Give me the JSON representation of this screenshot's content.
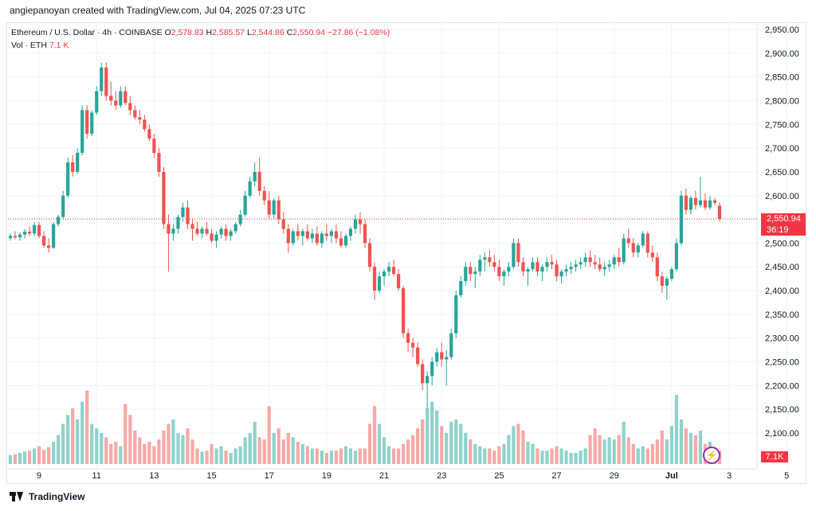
{
  "header": {
    "attribution": "angiepanoyan created with TradingView.com, Jul 04, 2025 07:23 UTC"
  },
  "legend": {
    "symbol": "Ethereum / U.S. Dollar · 4h · COINBASE",
    "open_label": "O",
    "open": "2,578.83",
    "high_label": "H",
    "high": "2,585.57",
    "low_label": "L",
    "low": "2,544.86",
    "close_label": "C",
    "close": "2,550.94",
    "change": "−27.86 (−1.08%)",
    "vol_label": "Vol · ETH",
    "vol_value": "7.1 K"
  },
  "last_price": {
    "price": "2,550.94",
    "countdown": "36:19",
    "vol_tag": "7.1K"
  },
  "footer": {
    "brand": "TradingView"
  },
  "colors": {
    "up": "#26a69a",
    "down": "#ef5350",
    "vol_up": "#8fd3cc",
    "vol_down": "#f7a9a7",
    "last": "#f23645",
    "grid": "#f0f3fa"
  },
  "chart_data": {
    "type": "candlestick",
    "ylim": [
      2130,
      2960
    ],
    "y_ticks": [
      "2,950.00",
      "2,900.00",
      "2,850.00",
      "2,800.00",
      "2,750.00",
      "2,700.00",
      "2,650.00",
      "2,600.00",
      "2,550.00",
      "2,500.00",
      "2,450.00",
      "2,400.00",
      "2,350.00",
      "2,300.00",
      "2,250.00",
      "2,200.00",
      "2,150.00",
      "2,100.00"
    ],
    "y_tick_values": [
      2950,
      2900,
      2850,
      2800,
      2750,
      2700,
      2650,
      2600,
      2550,
      2500,
      2450,
      2400,
      2350,
      2300,
      2250,
      2200,
      2150,
      2100
    ],
    "x_ticks": [
      "9",
      "11",
      "13",
      "15",
      "17",
      "19",
      "21",
      "23",
      "25",
      "27",
      "29",
      "Jul",
      "3",
      "5"
    ],
    "x_tick_index": [
      6,
      18,
      30,
      42,
      54,
      66,
      78,
      90,
      102,
      114,
      126,
      138,
      150,
      162
    ],
    "candles": [
      [
        2510,
        2520,
        2505,
        2515,
        2.0
      ],
      [
        2515,
        2525,
        2508,
        2512,
        2.2
      ],
      [
        2512,
        2522,
        2505,
        2518,
        2.5
      ],
      [
        2518,
        2530,
        2510,
        2524,
        2.8
      ],
      [
        2524,
        2535,
        2515,
        2520,
        3.0
      ],
      [
        2520,
        2545,
        2515,
        2538,
        3.5
      ],
      [
        2538,
        2545,
        2510,
        2515,
        4.0
      ],
      [
        2515,
        2525,
        2490,
        2495,
        3.2
      ],
      [
        2495,
        2510,
        2480,
        2490,
        3.8
      ],
      [
        2490,
        2545,
        2488,
        2540,
        5.0
      ],
      [
        2540,
        2560,
        2535,
        2555,
        6.5
      ],
      [
        2555,
        2610,
        2550,
        2600,
        9.0
      ],
      [
        2600,
        2680,
        2595,
        2670,
        11.0
      ],
      [
        2670,
        2685,
        2640,
        2650,
        12.5
      ],
      [
        2650,
        2700,
        2645,
        2690,
        10.0
      ],
      [
        2690,
        2790,
        2685,
        2780,
        14.0
      ],
      [
        2780,
        2790,
        2720,
        2730,
        16.5
      ],
      [
        2730,
        2780,
        2725,
        2775,
        9.0
      ],
      [
        2775,
        2830,
        2770,
        2820,
        8.0
      ],
      [
        2820,
        2880,
        2810,
        2870,
        7.0
      ],
      [
        2870,
        2880,
        2800,
        2810,
        6.0
      ],
      [
        2810,
        2840,
        2790,
        2800,
        4.5
      ],
      [
        2800,
        2820,
        2780,
        2790,
        5.0
      ],
      [
        2790,
        2830,
        2785,
        2820,
        4.0
      ],
      [
        2820,
        2830,
        2790,
        2795,
        13.5
      ],
      [
        2795,
        2810,
        2770,
        2780,
        11.0
      ],
      [
        2780,
        2790,
        2760,
        2765,
        7.5
      ],
      [
        2765,
        2780,
        2750,
        2760,
        6.0
      ],
      [
        2760,
        2770,
        2735,
        2740,
        4.5
      ],
      [
        2740,
        2750,
        2715,
        2720,
        5.0
      ],
      [
        2720,
        2730,
        2680,
        2690,
        4.0
      ],
      [
        2690,
        2700,
        2640,
        2650,
        5.5
      ],
      [
        2650,
        2660,
        2530,
        2540,
        7.5
      ],
      [
        2540,
        2560,
        2440,
        2520,
        9.0
      ],
      [
        2520,
        2540,
        2505,
        2530,
        10.0
      ],
      [
        2530,
        2560,
        2520,
        2555,
        7.0
      ],
      [
        2555,
        2585,
        2545,
        2575,
        6.5
      ],
      [
        2575,
        2590,
        2530,
        2540,
        8.0
      ],
      [
        2540,
        2550,
        2505,
        2530,
        5.5
      ],
      [
        2530,
        2545,
        2515,
        2520,
        3.5
      ],
      [
        2520,
        2535,
        2510,
        2530,
        2.8
      ],
      [
        2530,
        2545,
        2515,
        2520,
        3.0
      ],
      [
        2520,
        2530,
        2500,
        2505,
        4.5
      ],
      [
        2505,
        2525,
        2490,
        2518,
        3.5
      ],
      [
        2518,
        2535,
        2510,
        2530,
        4.0
      ],
      [
        2530,
        2540,
        2505,
        2515,
        3.0
      ],
      [
        2515,
        2530,
        2505,
        2525,
        2.5
      ],
      [
        2525,
        2545,
        2520,
        2540,
        3.5
      ],
      [
        2540,
        2570,
        2535,
        2560,
        4.0
      ],
      [
        2560,
        2610,
        2555,
        2600,
        6.0
      ],
      [
        2600,
        2640,
        2595,
        2630,
        7.0
      ],
      [
        2630,
        2670,
        2620,
        2650,
        9.5
      ],
      [
        2650,
        2680,
        2600,
        2610,
        6.0
      ],
      [
        2610,
        2620,
        2580,
        2590,
        5.5
      ],
      [
        2590,
        2610,
        2550,
        2560,
        13.0
      ],
      [
        2560,
        2595,
        2550,
        2590,
        7.0
      ],
      [
        2590,
        2600,
        2540,
        2550,
        8.0
      ],
      [
        2550,
        2565,
        2520,
        2530,
        5.5
      ],
      [
        2530,
        2540,
        2480,
        2500,
        7.0
      ],
      [
        2500,
        2530,
        2495,
        2525,
        6.0
      ],
      [
        2525,
        2540,
        2505,
        2515,
        5.0
      ],
      [
        2515,
        2530,
        2495,
        2525,
        4.5
      ],
      [
        2525,
        2540,
        2505,
        2510,
        4.0
      ],
      [
        2510,
        2530,
        2500,
        2520,
        3.5
      ],
      [
        2520,
        2535,
        2495,
        2500,
        3.5
      ],
      [
        2500,
        2525,
        2490,
        2520,
        3.0
      ],
      [
        2520,
        2540,
        2505,
        2515,
        2.5
      ],
      [
        2515,
        2530,
        2500,
        2525,
        3.0
      ],
      [
        2525,
        2540,
        2500,
        2510,
        3.0
      ],
      [
        2510,
        2525,
        2490,
        2495,
        3.5
      ],
      [
        2495,
        2520,
        2490,
        2515,
        4.0
      ],
      [
        2515,
        2535,
        2505,
        2530,
        3.5
      ],
      [
        2530,
        2560,
        2520,
        2550,
        3.0
      ],
      [
        2550,
        2565,
        2520,
        2540,
        3.5
      ],
      [
        2540,
        2550,
        2490,
        2500,
        3.5
      ],
      [
        2500,
        2510,
        2440,
        2450,
        9.0
      ],
      [
        2450,
        2460,
        2380,
        2400,
        13.0
      ],
      [
        2400,
        2440,
        2395,
        2430,
        9.0
      ],
      [
        2430,
        2445,
        2410,
        2440,
        6.0
      ],
      [
        2440,
        2460,
        2430,
        2450,
        4.0
      ],
      [
        2450,
        2465,
        2430,
        2435,
        3.5
      ],
      [
        2435,
        2445,
        2400,
        2405,
        3.5
      ],
      [
        2405,
        2410,
        2300,
        2310,
        4.5
      ],
      [
        2310,
        2320,
        2270,
        2290,
        5.5
      ],
      [
        2290,
        2300,
        2260,
        2280,
        6.5
      ],
      [
        2280,
        2290,
        2240,
        2245,
        8.0
      ],
      [
        2245,
        2255,
        2190,
        2205,
        10.0
      ],
      [
        2205,
        2230,
        2150,
        2220,
        12.5
      ],
      [
        2220,
        2260,
        2200,
        2250,
        14.0
      ],
      [
        2250,
        2280,
        2240,
        2270,
        12.0
      ],
      [
        2270,
        2290,
        2240,
        2255,
        8.5
      ],
      [
        2255,
        2275,
        2200,
        2260,
        7.0
      ],
      [
        2260,
        2320,
        2255,
        2310,
        9.5
      ],
      [
        2310,
        2400,
        2300,
        2390,
        10.0
      ],
      [
        2390,
        2430,
        2385,
        2420,
        9.0
      ],
      [
        2420,
        2460,
        2410,
        2450,
        7.0
      ],
      [
        2450,
        2460,
        2420,
        2435,
        5.5
      ],
      [
        2435,
        2450,
        2405,
        2440,
        4.5
      ],
      [
        2440,
        2475,
        2430,
        2465,
        4.0
      ],
      [
        2465,
        2480,
        2440,
        2470,
        3.5
      ],
      [
        2470,
        2485,
        2450,
        2460,
        3.5
      ],
      [
        2460,
        2475,
        2440,
        2450,
        3.0
      ],
      [
        2450,
        2465,
        2420,
        2430,
        4.0
      ],
      [
        2430,
        2445,
        2410,
        2440,
        4.5
      ],
      [
        2440,
        2460,
        2430,
        2450,
        6.5
      ],
      [
        2450,
        2510,
        2445,
        2500,
        8.5
      ],
      [
        2500,
        2510,
        2450,
        2460,
        9.0
      ],
      [
        2460,
        2470,
        2430,
        2440,
        7.5
      ],
      [
        2440,
        2450,
        2410,
        2445,
        5.0
      ],
      [
        2445,
        2470,
        2440,
        2460,
        4.5
      ],
      [
        2460,
        2470,
        2430,
        2440,
        3.5
      ],
      [
        2440,
        2455,
        2420,
        2450,
        3.0
      ],
      [
        2450,
        2470,
        2440,
        2460,
        3.0
      ],
      [
        2460,
        2475,
        2445,
        2455,
        3.5
      ],
      [
        2455,
        2465,
        2420,
        2430,
        4.0
      ],
      [
        2430,
        2445,
        2415,
        2440,
        3.5
      ],
      [
        2440,
        2455,
        2430,
        2445,
        3.0
      ],
      [
        2445,
        2460,
        2435,
        2450,
        2.5
      ],
      [
        2450,
        2465,
        2440,
        2455,
        2.5
      ],
      [
        2455,
        2470,
        2445,
        2460,
        3.0
      ],
      [
        2460,
        2480,
        2450,
        2470,
        3.5
      ],
      [
        2470,
        2485,
        2450,
        2460,
        6.5
      ],
      [
        2460,
        2475,
        2445,
        2455,
        8.0
      ],
      [
        2455,
        2470,
        2440,
        2445,
        6.5
      ],
      [
        2445,
        2460,
        2430,
        2450,
        5.5
      ],
      [
        2450,
        2465,
        2440,
        2455,
        6.0
      ],
      [
        2455,
        2475,
        2445,
        2470,
        5.5
      ],
      [
        2470,
        2490,
        2450,
        2460,
        6.5
      ],
      [
        2460,
        2520,
        2455,
        2510,
        9.5
      ],
      [
        2510,
        2530,
        2490,
        2500,
        6.0
      ],
      [
        2500,
        2510,
        2470,
        2480,
        4.5
      ],
      [
        2480,
        2500,
        2470,
        2495,
        3.5
      ],
      [
        2495,
        2525,
        2490,
        2520,
        4.0
      ],
      [
        2520,
        2525,
        2470,
        2480,
        3.5
      ],
      [
        2480,
        2495,
        2460,
        2470,
        4.5
      ],
      [
        2470,
        2480,
        2420,
        2430,
        5.5
      ],
      [
        2430,
        2440,
        2395,
        2410,
        7.5
      ],
      [
        2410,
        2430,
        2380,
        2425,
        5.5
      ],
      [
        2425,
        2450,
        2420,
        2445,
        8.5
      ],
      [
        2445,
        2510,
        2440,
        2500,
        15.5
      ],
      [
        2500,
        2610,
        2495,
        2600,
        10.0
      ],
      [
        2600,
        2615,
        2560,
        2570,
        8.0
      ],
      [
        2570,
        2600,
        2560,
        2595,
        7.0
      ],
      [
        2595,
        2610,
        2570,
        2580,
        6.5
      ],
      [
        2580,
        2640,
        2575,
        2590,
        7.5
      ],
      [
        2590,
        2605,
        2570,
        2575,
        4.5
      ],
      [
        2575,
        2600,
        2570,
        2590,
        5.0
      ],
      [
        2590,
        2595,
        2580,
        2585,
        3.5
      ],
      [
        2579,
        2586,
        2545,
        2551,
        3.0
      ]
    ],
    "last_price": 2550.94
  }
}
